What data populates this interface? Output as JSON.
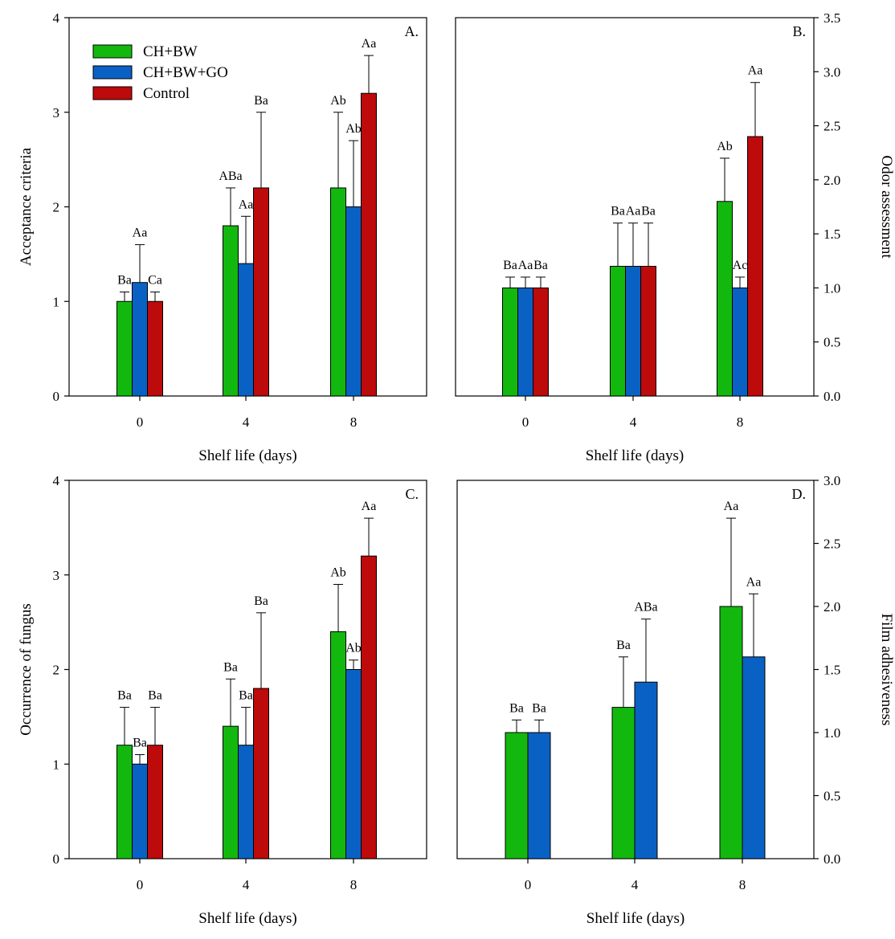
{
  "colors": {
    "CH+BW": "#13b80e",
    "CH+BW+GO": "#0a61c4",
    "Control": "#bd0a0a"
  },
  "legend": [
    "CH+BW",
    "CH+BW+GO",
    "Control"
  ],
  "chart_data": [
    {
      "type": "bar",
      "panel_label": "A.",
      "xlabel": "Shelf life (days)",
      "ylabel": "Acceptance criteria",
      "y_axis_side": "left",
      "ylim": [
        0,
        4
      ],
      "yticks": [
        "0",
        "1",
        "2",
        "3",
        "4"
      ],
      "categories": [
        "0",
        "4",
        "8"
      ],
      "legend_placement": "top-left",
      "series": [
        {
          "name": "CH+BW",
          "values": [
            1.0,
            1.8,
            2.2
          ],
          "errors": [
            0.1,
            0.4,
            0.8
          ],
          "labels": [
            "Ba",
            "ABa",
            "Ab"
          ]
        },
        {
          "name": "CH+BW+GO",
          "values": [
            1.2,
            1.4,
            2.0
          ],
          "errors": [
            0.4,
            0.5,
            0.7
          ],
          "labels": [
            "Aa",
            "Aa",
            "Ab"
          ]
        },
        {
          "name": "Control",
          "values": [
            1.0,
            2.2,
            3.2
          ],
          "errors": [
            0.1,
            0.8,
            0.4
          ],
          "labels": [
            "Ca",
            "Ba",
            "Aa"
          ]
        }
      ]
    },
    {
      "type": "bar",
      "panel_label": "B.",
      "xlabel": "Shelf life (days)",
      "ylabel": "Odor assessment",
      "y_axis_side": "right",
      "ylim": [
        0,
        3.5
      ],
      "yticks": [
        "0.0",
        "0.5",
        "1.0",
        "1.5",
        "2.0",
        "2.5",
        "3.0",
        "3.5"
      ],
      "categories": [
        "0",
        "4",
        "8"
      ],
      "series": [
        {
          "name": "CH+BW",
          "values": [
            1.0,
            1.2,
            1.8
          ],
          "errors": [
            0.1,
            0.4,
            0.4
          ],
          "labels": [
            "Ba",
            "Ba",
            "Ab"
          ]
        },
        {
          "name": "CH+BW+GO",
          "values": [
            1.0,
            1.2,
            1.0
          ],
          "errors": [
            0.1,
            0.4,
            0.1
          ],
          "labels": [
            "Aa",
            "Aa",
            "Ac"
          ]
        },
        {
          "name": "Control",
          "values": [
            1.0,
            1.2,
            2.4
          ],
          "errors": [
            0.1,
            0.4,
            0.5
          ],
          "labels": [
            "Ba",
            "Ba",
            "Aa"
          ]
        }
      ]
    },
    {
      "type": "bar",
      "panel_label": "C.",
      "xlabel": "Shelf life (days)",
      "ylabel": "Occurrence of fungus",
      "y_axis_side": "left",
      "ylim": [
        0,
        4
      ],
      "yticks": [
        "0",
        "1",
        "2",
        "3",
        "4"
      ],
      "categories": [
        "0",
        "4",
        "8"
      ],
      "series": [
        {
          "name": "CH+BW",
          "values": [
            1.2,
            1.4,
            2.4
          ],
          "errors": [
            0.4,
            0.5,
            0.5
          ],
          "labels": [
            "Ba",
            "Ba",
            "Ab"
          ]
        },
        {
          "name": "CH+BW+GO",
          "values": [
            1.0,
            1.2,
            2.0
          ],
          "errors": [
            0.1,
            0.4,
            0.1
          ],
          "labels": [
            "Ba",
            "Ba",
            "Ab"
          ]
        },
        {
          "name": "Control",
          "values": [
            1.2,
            1.8,
            3.2
          ],
          "errors": [
            0.4,
            0.8,
            0.4
          ],
          "labels": [
            "Ba",
            "Ba",
            "Aa"
          ]
        }
      ]
    },
    {
      "type": "bar",
      "panel_label": "D.",
      "xlabel": "Shelf life (days)",
      "ylabel": "Film adhesiveness",
      "y_axis_side": "right",
      "ylim": [
        0,
        3.0
      ],
      "yticks": [
        "0.0",
        "0.5",
        "1.0",
        "1.5",
        "2.0",
        "2.5",
        "3.0"
      ],
      "categories": [
        "0",
        "4",
        "8"
      ],
      "series": [
        {
          "name": "CH+BW",
          "values": [
            1.0,
            1.2,
            2.0
          ],
          "errors": [
            0.1,
            0.4,
            0.7
          ],
          "labels": [
            "Ba",
            "Ba",
            "Aa"
          ]
        },
        {
          "name": "CH+BW+GO",
          "values": [
            1.0,
            1.4,
            1.6
          ],
          "errors": [
            0.1,
            0.5,
            0.5
          ],
          "labels": [
            "Ba",
            "ABa",
            "Aa"
          ]
        }
      ]
    }
  ]
}
